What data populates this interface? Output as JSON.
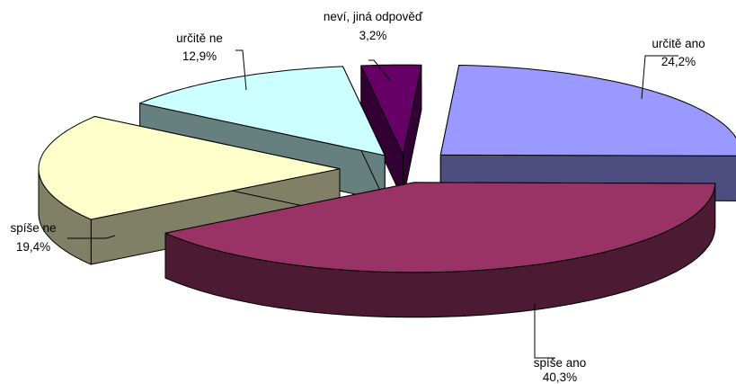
{
  "chart_data": {
    "type": "pie",
    "three_d": true,
    "exploded": true,
    "slices": [
      {
        "name": "určitě ano",
        "value": 24.2,
        "label": "24,2%",
        "color": "#9999ff"
      },
      {
        "name": "spíše ano",
        "value": 40.3,
        "label": "40,3%",
        "color": "#993366"
      },
      {
        "name": "spíše ne",
        "value": 19.4,
        "label": "19,4%",
        "color": "#ffffcc"
      },
      {
        "name": "určitě ne",
        "value": 12.9,
        "label": "12,9%",
        "color": "#ccffff"
      },
      {
        "name": "neví, jiná odpověď",
        "value": 3.2,
        "label": "3,2%",
        "color": "#660066"
      }
    ],
    "title": "",
    "legend": "none"
  }
}
